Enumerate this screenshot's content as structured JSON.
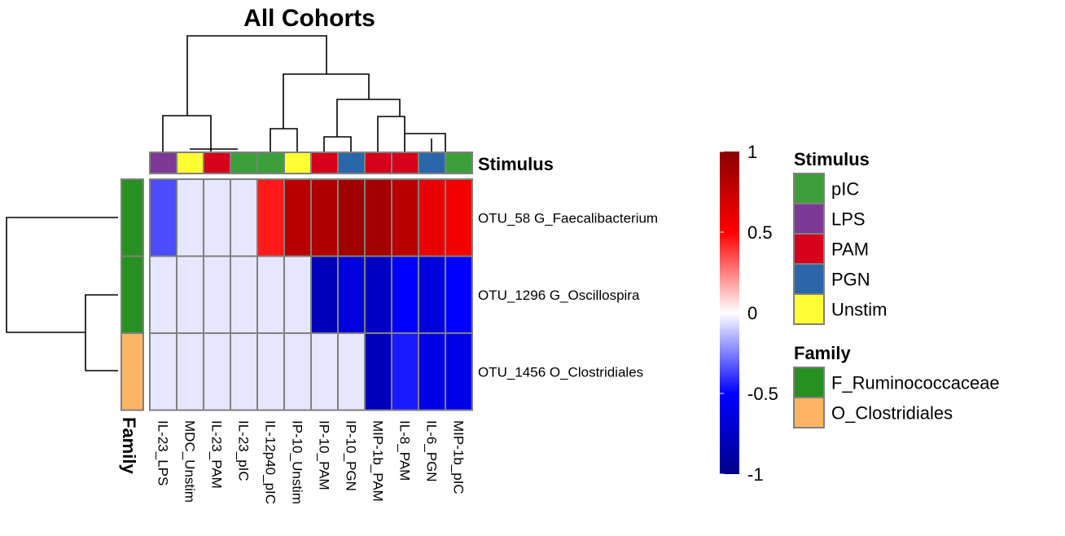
{
  "chart_data": {
    "type": "heatmap",
    "title": "All Cohorts",
    "columns": [
      "IL-23_LPS",
      "MDC_Unstim",
      "IL-23_PAM",
      "IL-23_pIC",
      "IL-12p40_pIC",
      "IP-10_Unstim",
      "IP-10_PAM",
      "IP-10_PGN",
      "MIP-1b_PAM",
      "IL-8_PAM",
      "IL-6_PGN",
      "MIP-1b_pIC"
    ],
    "rows": [
      "OTU_58 G_Faecalibacterium",
      "OTU_1296 G_Oscillospira",
      "OTU_1456 O_Clostridiales"
    ],
    "values": [
      [
        -0.35,
        -0.05,
        -0.05,
        -0.05,
        0.45,
        0.8,
        0.85,
        0.9,
        0.9,
        0.8,
        0.6,
        0.55
      ],
      [
        -0.05,
        -0.05,
        -0.05,
        -0.05,
        -0.05,
        -0.05,
        -0.8,
        -0.65,
        -0.75,
        -0.5,
        -0.65,
        -0.5
      ],
      [
        -0.05,
        -0.05,
        -0.05,
        -0.05,
        -0.05,
        -0.05,
        -0.05,
        -0.05,
        -0.8,
        -0.45,
        -0.6,
        -0.6
      ]
    ],
    "column_annotation": {
      "name": "Stimulus",
      "values": [
        "LPS",
        "Unstim",
        "PAM",
        "pIC",
        "pIC",
        "Unstim",
        "PAM",
        "PGN",
        "PAM",
        "PAM",
        "PGN",
        "pIC"
      ]
    },
    "row_annotation": {
      "name": "Family",
      "values": [
        "F_Ruminococcaceae",
        "F_Ruminococcaceae",
        "O_Clostridiales"
      ]
    },
    "colorbar": {
      "range": [
        -1,
        1
      ],
      "ticks": [
        "1",
        "0.5",
        "0",
        "-0.5",
        "-1"
      ],
      "low_color": "#00008B",
      "mid_color": "#FFFFFF",
      "high_color": "#8B0000"
    },
    "legends": [
      {
        "title": "Stimulus",
        "items": [
          {
            "label": "pIC",
            "color": "#3C9F3A"
          },
          {
            "label": "LPS",
            "color": "#7E3896"
          },
          {
            "label": "PAM",
            "color": "#D7001C"
          },
          {
            "label": "PGN",
            "color": "#2A66A9"
          },
          {
            "label": "Unstim",
            "color": "#FFFF33"
          }
        ]
      },
      {
        "title": "Family",
        "items": [
          {
            "label": "F_Ruminococcaceae",
            "color": "#289020"
          },
          {
            "label": "O_Clostridiales",
            "color": "#FDB463"
          }
        ]
      }
    ]
  }
}
